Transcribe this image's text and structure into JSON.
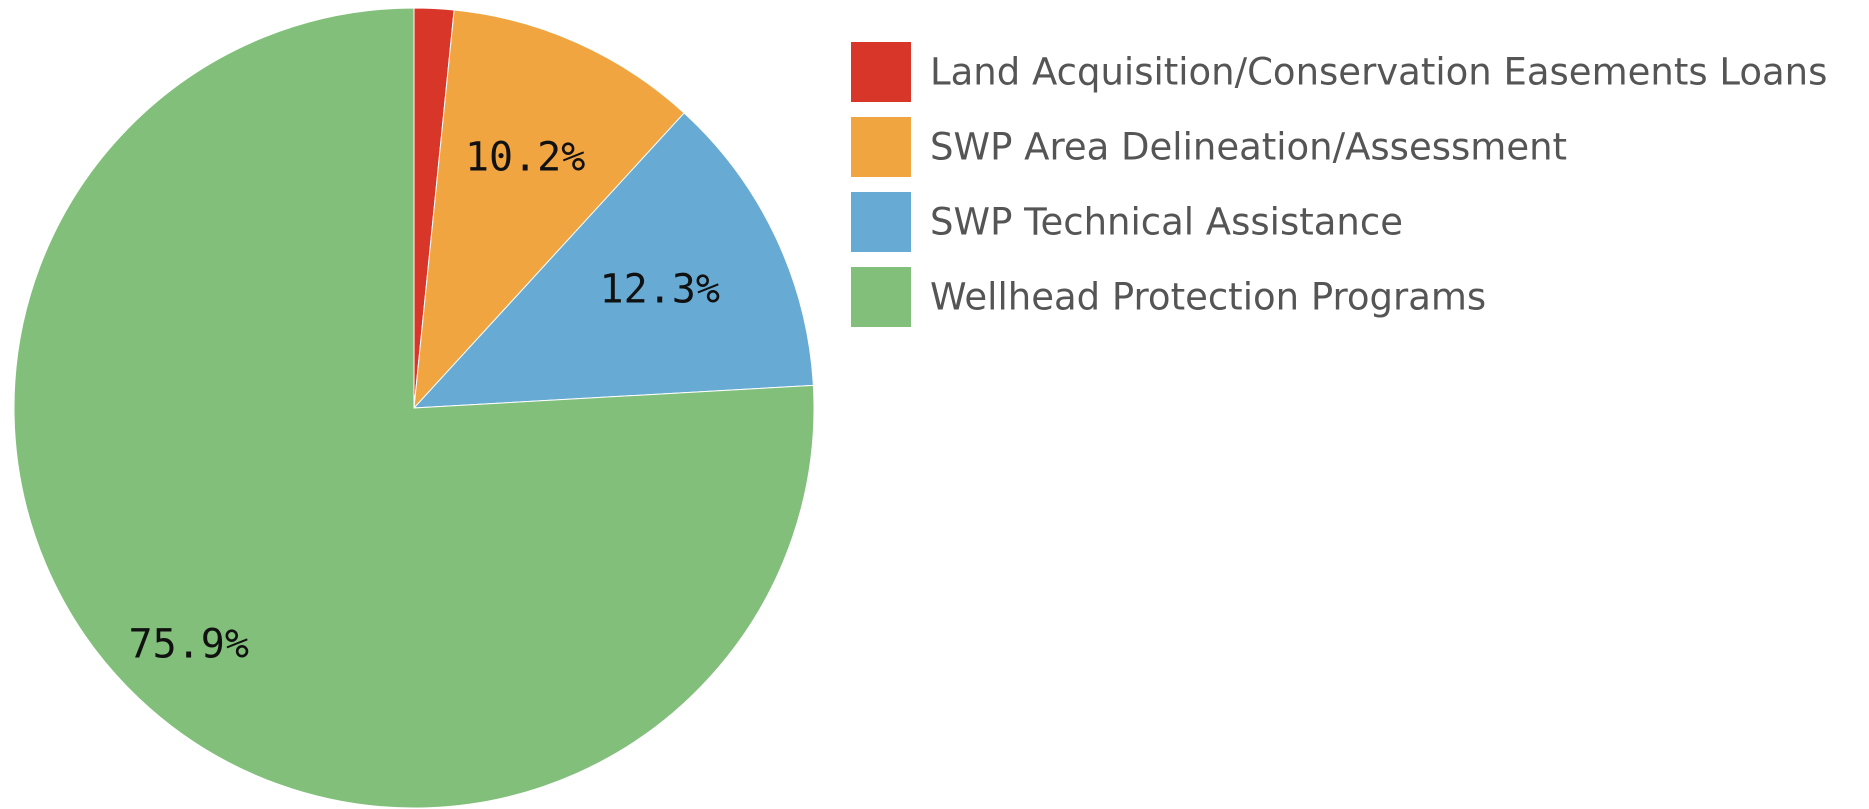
{
  "chart_data": {
    "type": "pie",
    "categories": [
      "Land Acquisition/Conservation Easements Loans",
      "SWP Area Delineation/Assessment",
      "SWP Technical Assistance",
      "Wellhead Protection Programs"
    ],
    "values": [
      1.6,
      10.2,
      12.3,
      75.9
    ],
    "value_labels": [
      null,
      "10.2%",
      "12.3%",
      "75.9%"
    ],
    "colors": [
      "#d9362a",
      "#f0a541",
      "#67aad3",
      "#81bf7b"
    ],
    "legend": "right"
  }
}
